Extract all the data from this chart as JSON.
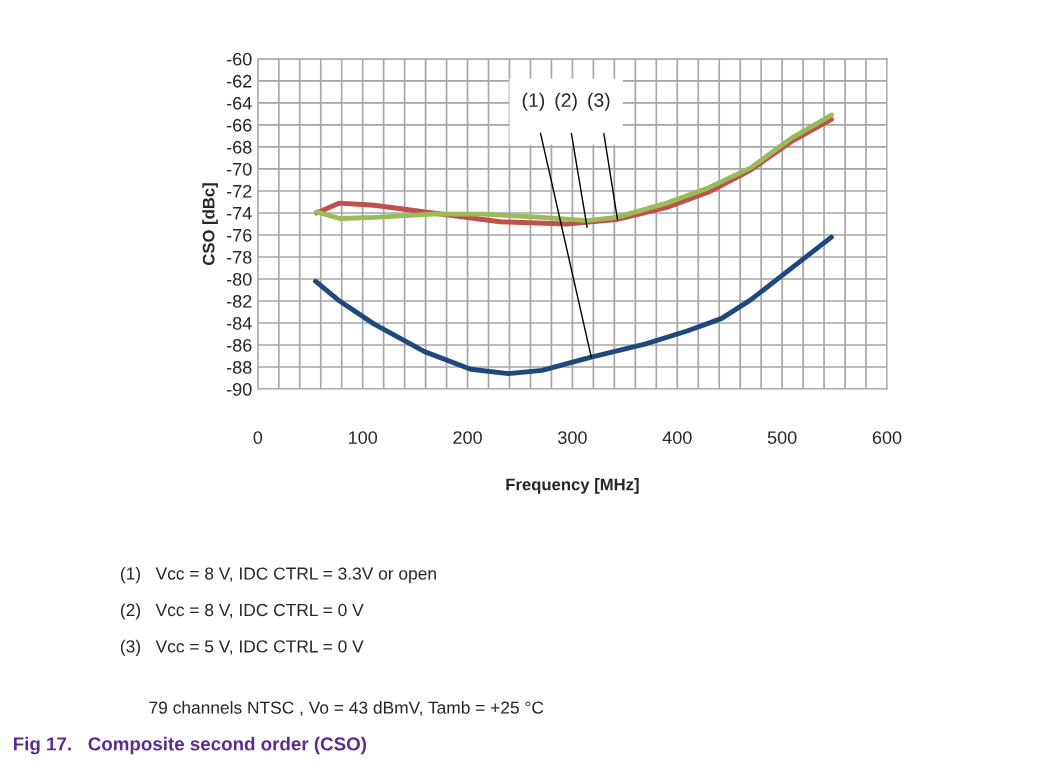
{
  "chart_data": {
    "type": "line",
    "title": "Fig 17.   Composite second order (CSO)",
    "xlabel": "Frequency [MHz]",
    "ylabel": "CSO [dBc]",
    "series": [
      {
        "color": "#1f497d",
        "x": [
          55,
          78,
          111,
          159,
          203,
          239,
          271,
          318,
          370,
          410,
          442,
          470,
          501,
          547
        ],
        "values": [
          -80.2,
          -82.0,
          -84.1,
          -86.6,
          -88.2,
          -88.6,
          -88.3,
          -87.1,
          -85.9,
          -84.7,
          -83.6,
          -81.9,
          -79.6,
          -76.2
        ]
      },
      {
        "color": "#c0504d",
        "x": [
          56,
          78,
          111,
          167,
          231,
          294,
          342,
          390,
          430,
          470,
          509,
          547
        ],
        "values": [
          -74.0,
          -73.1,
          -73.3,
          -74.0,
          -74.8,
          -75.0,
          -74.6,
          -73.5,
          -72.1,
          -70.1,
          -67.5,
          -65.5
        ]
      },
      {
        "color": "#9bbb59",
        "x": [
          56,
          78,
          111,
          167,
          215,
          271,
          314,
          342,
          390,
          430,
          470,
          509,
          547
        ],
        "values": [
          -73.9,
          -74.5,
          -74.4,
          -74.1,
          -74.1,
          -74.4,
          -74.7,
          -74.4,
          -73.1,
          -71.7,
          -69.9,
          -67.2,
          -65.1
        ]
      }
    ],
    "xlim": [
      0,
      600
    ],
    "xticks": [
      0,
      {
        "value": 20,
        "label": null
      },
      {
        "value": 40,
        "label": null
      },
      {
        "value": 60,
        "label": null
      },
      {
        "value": 80,
        "label": null
      },
      100,
      {
        "value": 120,
        "label": null
      },
      {
        "value": 140,
        "label": null
      },
      {
        "value": 160,
        "label": null
      },
      {
        "value": 180,
        "label": null
      },
      200,
      {
        "value": 220,
        "label": null
      },
      {
        "value": 240,
        "label": null
      },
      {
        "value": 260,
        "label": null
      },
      {
        "value": 280,
        "label": null
      },
      300,
      {
        "value": 320,
        "label": null
      },
      {
        "value": 340,
        "label": null
      },
      {
        "value": 360,
        "label": null
      },
      {
        "value": 380,
        "label": null
      },
      400,
      {
        "value": 420,
        "label": null
      },
      {
        "value": 440,
        "label": null
      },
      {
        "value": 460,
        "label": null
      },
      {
        "value": 480,
        "label": null
      },
      500,
      {
        "value": 520,
        "label": null
      },
      {
        "value": 540,
        "label": null
      },
      {
        "value": 560,
        "label": null
      },
      {
        "value": 580,
        "label": null
      },
      600
    ],
    "ylim": [
      -90,
      -60
    ],
    "yticks": [
      -90,
      -88,
      -86,
      -84,
      -82,
      -80,
      -78,
      -76,
      -74,
      -72,
      -70,
      -68,
      -66,
      -64,
      -62,
      -60
    ],
    "grid": true,
    "line_style": "solid",
    "marker": "none",
    "legend": false,
    "annotations": [
      {
        "text": "(1)",
        "x": 318,
        "y": -87.1
      },
      {
        "text": "(2)",
        "x": 314,
        "y": -75.3
      },
      {
        "text": "(3)",
        "x": 343,
        "y": -74.6
      },
      "(1)   Vcc = 8 V, IDC CTRL = 3.3V or open",
      "(2)   Vcc = 8 V, IDC CTRL = 0 V",
      "(3)   Vcc = 5 V, IDC CTRL = 0 V",
      "79 channels NTSC , Vo = 43 dBmV, Tamb = +25 °C"
    ]
  }
}
